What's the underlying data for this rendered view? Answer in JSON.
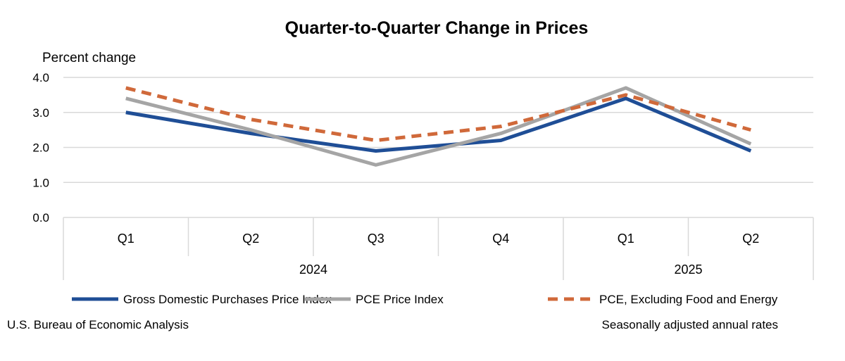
{
  "chart_data": {
    "type": "line",
    "title": "Quarter-to-Quarter Change in Prices",
    "ylabel": "Percent change",
    "xlabel": "",
    "ylim": [
      0,
      4
    ],
    "yticks": [
      "0.0",
      "1.0",
      "2.0",
      "3.0",
      "4.0"
    ],
    "categories": [
      "Q1",
      "Q2",
      "Q3",
      "Q4",
      "Q1",
      "Q2"
    ],
    "groups": [
      {
        "label": "2024",
        "span": 4
      },
      {
        "label": "2025",
        "span": 2
      }
    ],
    "grid": true,
    "legend_position": "bottom",
    "series": [
      {
        "name": "Gross Domestic Purchases Price Index",
        "color": "#1f4e96",
        "dash": false,
        "values": [
          3.0,
          2.4,
          1.9,
          2.2,
          3.4,
          1.9
        ]
      },
      {
        "name": "PCE Price Index",
        "color": "#a5a5a5",
        "dash": false,
        "values": [
          3.4,
          2.5,
          1.5,
          2.4,
          3.7,
          2.1
        ]
      },
      {
        "name": "PCE, Excluding Food and Energy",
        "color": "#d0693a",
        "dash": true,
        "values": [
          3.7,
          2.8,
          2.2,
          2.6,
          3.5,
          2.5
        ]
      }
    ]
  },
  "footer": {
    "source": "U.S. Bureau of Economic Analysis",
    "note": "Seasonally adjusted annual rates"
  }
}
